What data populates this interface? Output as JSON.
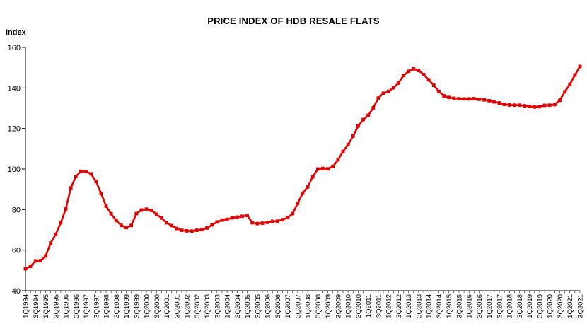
{
  "chart_data": {
    "type": "line",
    "title": "PRICE INDEX OF HDB RESALE FLATS",
    "ylabel": "Index",
    "xlabel": "",
    "ylim": [
      40,
      160
    ],
    "yticks": [
      40,
      60,
      80,
      100,
      120,
      140,
      160
    ],
    "grid": false,
    "legend": "none",
    "series_color": "#e00000",
    "categories": [
      "1Q1994",
      "2Q1994",
      "3Q1994",
      "4Q1994",
      "1Q1995",
      "2Q1995",
      "3Q1995",
      "4Q1995",
      "1Q1996",
      "2Q1996",
      "3Q1996",
      "4Q1996",
      "1Q1997",
      "2Q1997",
      "3Q1997",
      "4Q1997",
      "1Q1998",
      "2Q1998",
      "3Q1998",
      "4Q1998",
      "1Q1999",
      "2Q1999",
      "3Q1999",
      "4Q1999",
      "1Q2000",
      "2Q2000",
      "3Q2000",
      "4Q2000",
      "1Q2001",
      "2Q2001",
      "3Q2001",
      "4Q2001",
      "1Q2002",
      "2Q2002",
      "3Q2002",
      "4Q2002",
      "1Q2003",
      "2Q2003",
      "3Q2003",
      "4Q2003",
      "1Q2004",
      "2Q2004",
      "3Q2004",
      "4Q2004",
      "1Q2005",
      "2Q2005",
      "3Q2005",
      "4Q2005",
      "1Q2006",
      "2Q2006",
      "3Q2006",
      "4Q2006",
      "1Q2007",
      "2Q2007",
      "3Q2007",
      "4Q2007",
      "1Q2008",
      "2Q2008",
      "3Q2008",
      "4Q2008",
      "1Q2009",
      "2Q2009",
      "3Q2009",
      "4Q2009",
      "1Q2010",
      "2Q2010",
      "3Q2010",
      "4Q2010",
      "1Q2011",
      "2Q2011",
      "3Q2011",
      "4Q2011",
      "1Q2012",
      "2Q2012",
      "3Q2012",
      "4Q2012",
      "1Q2013",
      "2Q2013",
      "3Q2013",
      "4Q2013",
      "1Q2014",
      "2Q2014",
      "3Q2014",
      "4Q2014",
      "1Q2015",
      "2Q2015",
      "3Q2015",
      "4Q2015",
      "1Q2016",
      "2Q2016",
      "3Q2016",
      "4Q2016",
      "1Q2017",
      "2Q2017",
      "3Q2017",
      "4Q2017",
      "1Q2018",
      "2Q2018",
      "3Q2018",
      "4Q2018",
      "1Q2019",
      "2Q2019",
      "3Q2019",
      "4Q2019",
      "1Q2020",
      "2Q2020",
      "3Q2020",
      "4Q2020",
      "1Q2021",
      "2Q2021",
      "3Q2021"
    ],
    "x_tick_labels": [
      "1Q1994",
      "3Q1994",
      "1Q1995",
      "3Q1995",
      "1Q1996",
      "3Q1996",
      "1Q1997",
      "3Q1997",
      "1Q1998",
      "3Q1998",
      "1Q1999",
      "3Q1999",
      "1Q2000",
      "3Q2000",
      "1Q2001",
      "3Q2001",
      "1Q2002",
      "3Q2002",
      "1Q2003",
      "3Q2003",
      "1Q2004",
      "3Q2004",
      "1Q2005",
      "3Q2005",
      "1Q2006",
      "3Q2006",
      "1Q2007",
      "3Q2007",
      "1Q2008",
      "3Q2008",
      "1Q2009",
      "3Q2009",
      "1Q2010",
      "3Q2010",
      "1Q2011",
      "3Q2011",
      "1Q2012",
      "3Q2012",
      "1Q2013",
      "3Q2013",
      "1Q2014",
      "3Q2014",
      "1Q2015",
      "3Q2015",
      "1Q2016",
      "3Q2016",
      "1Q2017",
      "3Q2017",
      "1Q2018",
      "3Q2018",
      "1Q2019",
      "3Q2019",
      "1Q2020",
      "3Q2020",
      "1Q2021",
      "3Q2021"
    ],
    "values": [
      50.8,
      52.0,
      54.7,
      54.8,
      57.1,
      63.5,
      67.8,
      73.5,
      80.3,
      90.7,
      96.3,
      98.9,
      98.7,
      97.6,
      93.9,
      88.0,
      81.7,
      77.9,
      74.6,
      72.2,
      71.1,
      72.2,
      78.0,
      79.8,
      80.2,
      79.6,
      77.7,
      75.8,
      73.5,
      72.1,
      70.7,
      69.8,
      69.5,
      69.4,
      69.8,
      70.1,
      70.9,
      72.4,
      73.9,
      74.8,
      75.2,
      75.9,
      76.3,
      76.7,
      77.1,
      73.5,
      73.1,
      73.3,
      73.7,
      74.2,
      74.3,
      75.0,
      76.0,
      78.0,
      83.1,
      88.1,
      91.2,
      96.2,
      100.0,
      100.3,
      100.1,
      101.3,
      104.5,
      108.7,
      112.0,
      116.3,
      121.2,
      124.4,
      126.5,
      130.2,
      135.0,
      137.4,
      138.3,
      140.1,
      142.4,
      146.2,
      148.2,
      149.4,
      148.6,
      146.6,
      144.0,
      141.3,
      138.3,
      136.1,
      135.3,
      134.9,
      134.7,
      134.6,
      134.6,
      134.7,
      134.4,
      134.1,
      133.7,
      133.1,
      132.6,
      131.9,
      131.6,
      131.5,
      131.5,
      131.2,
      130.9,
      130.6,
      130.8,
      131.4,
      131.5,
      131.8,
      133.9,
      138.1,
      141.8,
      146.4,
      150.6
    ]
  }
}
